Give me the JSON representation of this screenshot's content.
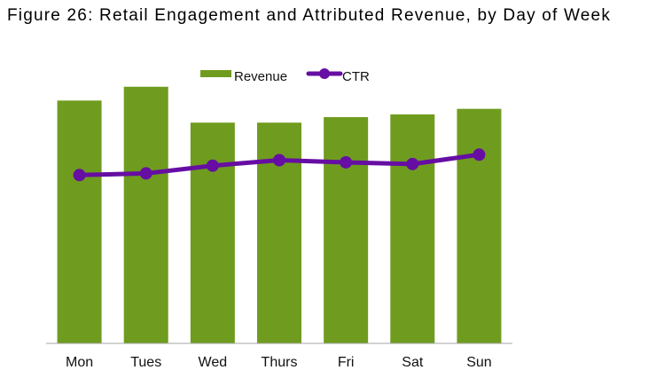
{
  "figure": {
    "title": "Figure 26: Retail Engagement and Attributed Revenue, by Day of Week"
  },
  "colors": {
    "revenue": "#6f9c1f",
    "ctr": "#660ea3",
    "axis": "#a6a6a6"
  },
  "chart_data": {
    "type": "bar",
    "title": "",
    "xlabel": "",
    "ylabel": "",
    "categories": [
      "Mon",
      "Tues",
      "Wed",
      "Thurs",
      "Fri",
      "Sat",
      "Sun"
    ],
    "legend_position": "top",
    "grid": false,
    "ylim": [
      0,
      100
    ],
    "y2lim": [
      0,
      100
    ],
    "series": [
      {
        "name": "Revenue",
        "type": "bar",
        "axis": "left",
        "values": [
          88,
          93,
          80,
          80,
          82,
          83,
          85
        ]
      },
      {
        "name": "CTR",
        "type": "line",
        "axis": "right",
        "marker": "circle",
        "values": [
          61,
          61.6,
          64.4,
          66.4,
          65.6,
          65,
          68.4
        ]
      }
    ]
  }
}
